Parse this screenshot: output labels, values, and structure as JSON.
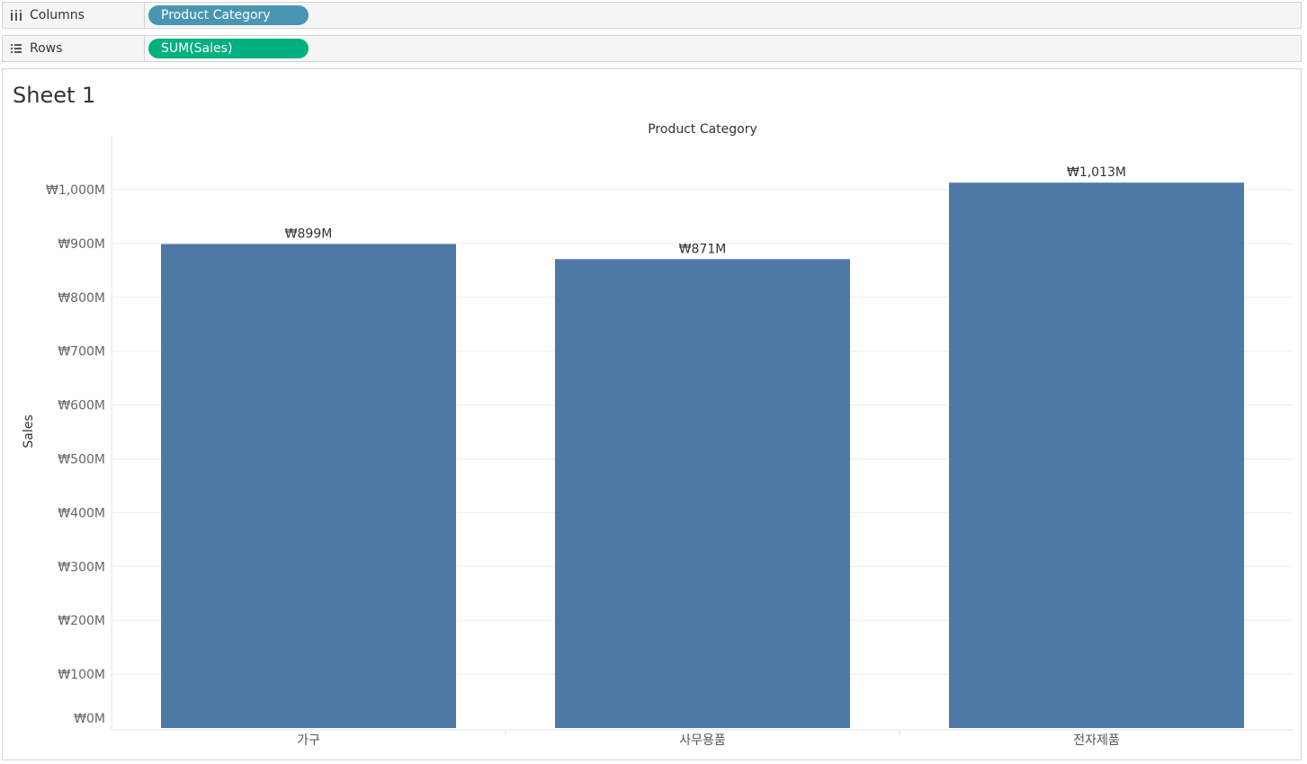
{
  "shelves": {
    "columns": {
      "label": "Columns",
      "pill": "Product Category"
    },
    "rows": {
      "label": "Rows",
      "pill": "SUM(Sales)"
    }
  },
  "sheet": {
    "title": "Sheet 1"
  },
  "colors": {
    "bar": "#4e79a7",
    "dimension_pill": "#4996b2",
    "measure_pill": "#00b180",
    "grid": "#eeeeee"
  },
  "chart_data": {
    "type": "bar",
    "header": "Product Category",
    "ylabel": "Sales",
    "categories": [
      "가구",
      "사무용품",
      "전자제품"
    ],
    "values": [
      899,
      871,
      1013
    ],
    "value_labels": [
      "₩899M",
      "₩871M",
      "₩1,013M"
    ],
    "ylim": [
      0,
      1100
    ],
    "yticks": [
      0,
      100,
      200,
      300,
      400,
      500,
      600,
      700,
      800,
      900,
      1000
    ],
    "ytick_labels": [
      "₩0M",
      "₩100M",
      "₩200M",
      "₩300M",
      "₩400M",
      "₩500M",
      "₩600M",
      "₩700M",
      "₩800M",
      "₩900M",
      "₩1,000M"
    ],
    "grid": true
  }
}
